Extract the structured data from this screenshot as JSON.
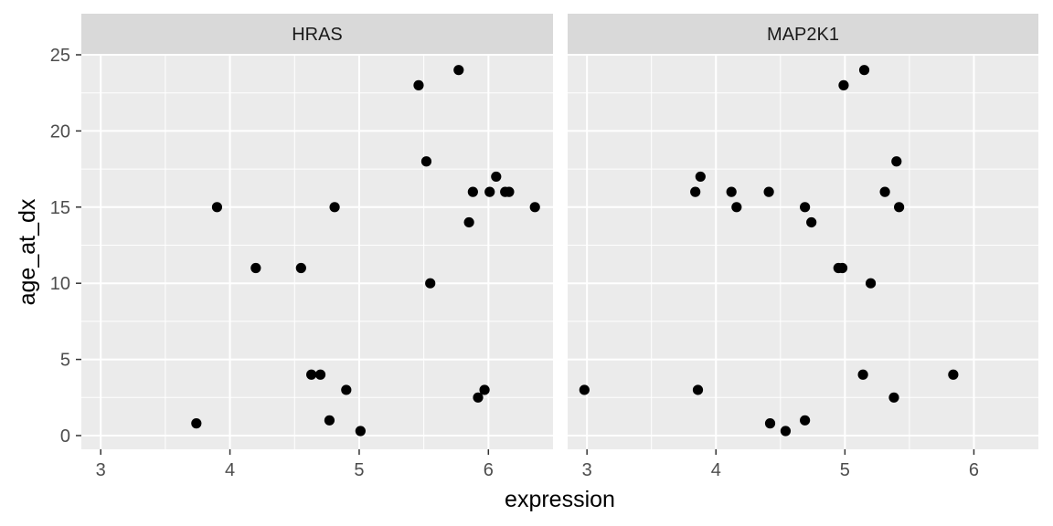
{
  "chart_data": {
    "type": "scatter",
    "xlabel": "expression",
    "ylabel": "age_at_dx",
    "xlim": [
      2.85,
      6.5
    ],
    "ylim": [
      -0.9,
      25
    ],
    "x_ticks": [
      3,
      4,
      5,
      6
    ],
    "y_ticks": [
      0,
      5,
      10,
      15,
      20,
      25
    ],
    "grid": true,
    "facets": [
      {
        "label": "HRAS",
        "points": [
          {
            "x": 3.74,
            "y": 0.8
          },
          {
            "x": 3.9,
            "y": 15
          },
          {
            "x": 4.2,
            "y": 11
          },
          {
            "x": 4.55,
            "y": 11
          },
          {
            "x": 4.63,
            "y": 4
          },
          {
            "x": 4.7,
            "y": 4
          },
          {
            "x": 4.77,
            "y": 1
          },
          {
            "x": 4.81,
            "y": 15
          },
          {
            "x": 4.9,
            "y": 3
          },
          {
            "x": 5.01,
            "y": 0.3
          },
          {
            "x": 5.46,
            "y": 23
          },
          {
            "x": 5.52,
            "y": 18
          },
          {
            "x": 5.55,
            "y": 10
          },
          {
            "x": 5.77,
            "y": 24
          },
          {
            "x": 5.85,
            "y": 14
          },
          {
            "x": 5.88,
            "y": 16
          },
          {
            "x": 5.92,
            "y": 2.5
          },
          {
            "x": 5.97,
            "y": 3
          },
          {
            "x": 6.01,
            "y": 16
          },
          {
            "x": 6.06,
            "y": 17
          },
          {
            "x": 6.13,
            "y": 16
          },
          {
            "x": 6.16,
            "y": 16
          },
          {
            "x": 6.36,
            "y": 15
          }
        ]
      },
      {
        "label": "MAP2K1",
        "points": [
          {
            "x": 2.98,
            "y": 3
          },
          {
            "x": 3.84,
            "y": 16
          },
          {
            "x": 3.86,
            "y": 3
          },
          {
            "x": 3.88,
            "y": 17
          },
          {
            "x": 4.12,
            "y": 16
          },
          {
            "x": 4.16,
            "y": 15
          },
          {
            "x": 4.41,
            "y": 16
          },
          {
            "x": 4.42,
            "y": 0.8
          },
          {
            "x": 4.54,
            "y": 0.3
          },
          {
            "x": 4.69,
            "y": 15
          },
          {
            "x": 4.69,
            "y": 1
          },
          {
            "x": 4.74,
            "y": 14
          },
          {
            "x": 4.95,
            "y": 11
          },
          {
            "x": 4.98,
            "y": 11
          },
          {
            "x": 4.99,
            "y": 23
          },
          {
            "x": 5.14,
            "y": 4
          },
          {
            "x": 5.15,
            "y": 24
          },
          {
            "x": 5.2,
            "y": 10
          },
          {
            "x": 5.31,
            "y": 16
          },
          {
            "x": 5.38,
            "y": 2.5
          },
          {
            "x": 5.4,
            "y": 18
          },
          {
            "x": 5.42,
            "y": 15
          },
          {
            "x": 5.84,
            "y": 4
          }
        ]
      }
    ]
  }
}
